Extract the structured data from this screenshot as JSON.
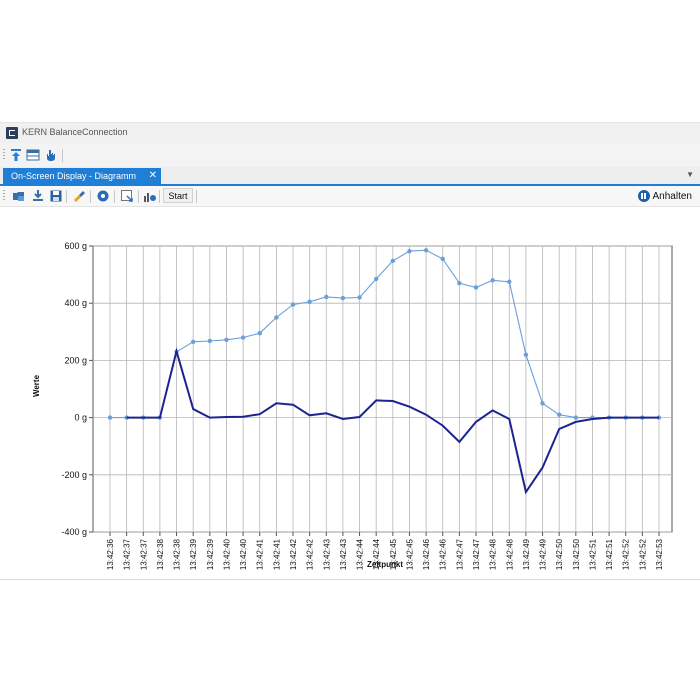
{
  "app": {
    "title": "KERN BalanceConnection"
  },
  "tab": {
    "label": "On-Screen Display - Diagramm",
    "close": "✕"
  },
  "toolbar": {
    "start_label": "Start",
    "pause_label": "Anhalten"
  },
  "chart_data": {
    "type": "line",
    "ylabel": "Werte",
    "xlabel": "Zeitpunkt",
    "ylim": [
      -400,
      600
    ],
    "yticks": [
      "-400 g",
      "-200 g",
      "0 g",
      "200 g",
      "400 g",
      "600 g"
    ],
    "grid": true,
    "categories": [
      "13:42:36",
      "13:42:37",
      "13:42:37",
      "13:42:38",
      "13:42:38",
      "13:42:39",
      "13:42:39",
      "13:42:40",
      "13:42:40",
      "13:42:41",
      "13:42:41",
      "13:42:42",
      "13:42:42",
      "13:42:43",
      "13:42:43",
      "13:42:44",
      "13:42:44",
      "13:42:45",
      "13:42:45",
      "13:42:46",
      "13:42:46",
      "13:42:47",
      "13:42:47",
      "13:42:48",
      "13:42:48",
      "13:42:49",
      "13:42:49",
      "13:42:50",
      "13:42:50",
      "13:42:51",
      "13:42:51",
      "13:42:52",
      "13:42:52",
      "13:42:53"
    ],
    "series": [
      {
        "color": "#6a9fd8",
        "values": [
          0,
          0,
          0,
          0,
          230,
          265,
          268,
          272,
          280,
          295,
          350,
          395,
          405,
          422,
          418,
          420,
          485,
          548,
          582,
          585,
          555,
          470,
          455,
          480,
          475,
          220,
          50,
          10,
          0,
          0,
          0,
          0,
          0,
          0
        ]
      },
      {
        "color": "#1c2490",
        "values": [
          null,
          0,
          0,
          0,
          232,
          30,
          0,
          2,
          3,
          12,
          50,
          45,
          8,
          15,
          -5,
          2,
          60,
          58,
          38,
          10,
          -28,
          -85,
          -15,
          25,
          -5,
          -260,
          -175,
          -40,
          -15,
          -5,
          0,
          0,
          0,
          0
        ]
      }
    ]
  }
}
